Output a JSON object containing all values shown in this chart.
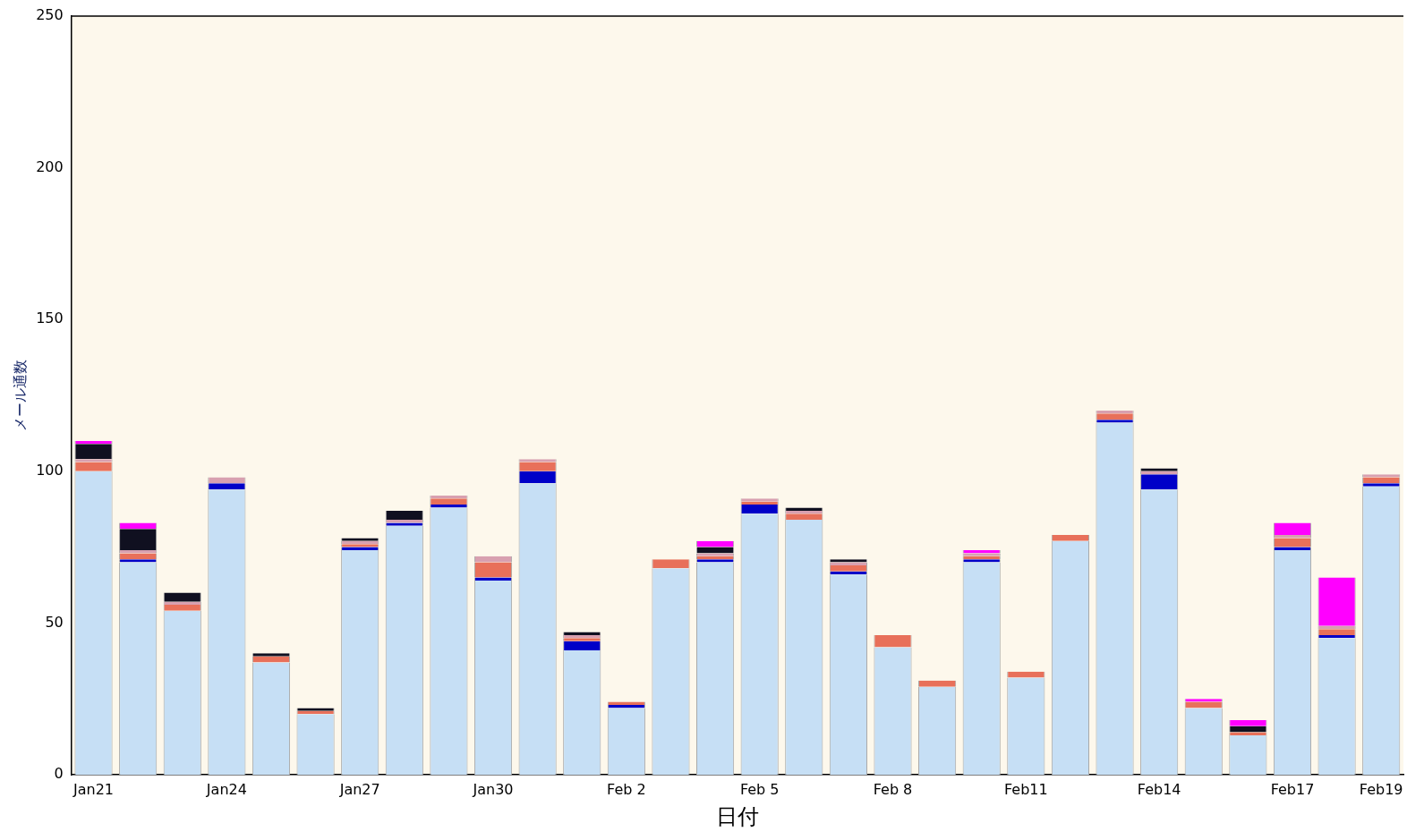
{
  "chart_data": {
    "type": "bar",
    "stacked": true,
    "xlabel": "日付",
    "ylabel": "メール通数",
    "categories": [
      "Jan21",
      null,
      null,
      "Jan24",
      null,
      null,
      "Jan27",
      null,
      null,
      "Jan30",
      null,
      null,
      "Feb 2",
      null,
      null,
      "Feb 5",
      null,
      null,
      "Feb 8",
      null,
      null,
      "Feb11",
      null,
      null,
      "Feb14",
      null,
      null,
      "Feb17",
      null,
      "Feb19"
    ],
    "series": [
      {
        "color": "#c6dff5",
        "values": [
          100,
          70,
          54,
          94,
          37,
          20,
          74,
          82,
          88,
          64,
          96,
          41,
          22,
          68,
          70,
          86,
          84,
          66,
          42,
          29,
          70,
          32,
          77,
          116,
          94,
          22,
          13,
          74,
          45,
          95
        ]
      },
      {
        "color": "#0000c8",
        "values": [
          0,
          1,
          0,
          2,
          0,
          0,
          1,
          1,
          1,
          1,
          4,
          3,
          1,
          0,
          1,
          3,
          0,
          1,
          0,
          0,
          1,
          0,
          0,
          1,
          5,
          0,
          0,
          1,
          1,
          1
        ]
      },
      {
        "color": "#e8705a",
        "values": [
          3,
          2,
          2,
          0,
          2,
          1,
          1,
          0,
          2,
          5,
          3,
          1,
          1,
          3,
          1,
          1,
          2,
          2,
          4,
          2,
          1,
          2,
          2,
          2,
          0,
          2,
          1,
          3,
          2,
          2
        ]
      },
      {
        "color": "#d8a0b0",
        "values": [
          1,
          1,
          1,
          2,
          0,
          0,
          1,
          1,
          1,
          2,
          1,
          1,
          0,
          0,
          1,
          1,
          1,
          1,
          0,
          0,
          1,
          0,
          0,
          1,
          1,
          0,
          0,
          1,
          1,
          1
        ]
      },
      {
        "color": "#101020",
        "values": [
          5,
          7,
          3,
          0,
          1,
          1,
          1,
          3,
          0,
          0,
          0,
          1,
          0,
          0,
          2,
          0,
          1,
          1,
          0,
          0,
          0,
          0,
          0,
          0,
          1,
          0,
          2,
          0,
          0,
          0
        ]
      },
      {
        "color": "#ff00ff",
        "values": [
          1,
          2,
          0,
          0,
          0,
          0,
          0,
          0,
          0,
          0,
          0,
          0,
          0,
          0,
          2,
          0,
          0,
          0,
          0,
          0,
          1,
          0,
          0,
          0,
          0,
          1,
          2,
          4,
          16,
          0
        ]
      }
    ],
    "ylim": [
      0,
      250
    ],
    "yticks": [
      0,
      50,
      100,
      150,
      200,
      250
    ],
    "grid": false,
    "legend": false
  }
}
